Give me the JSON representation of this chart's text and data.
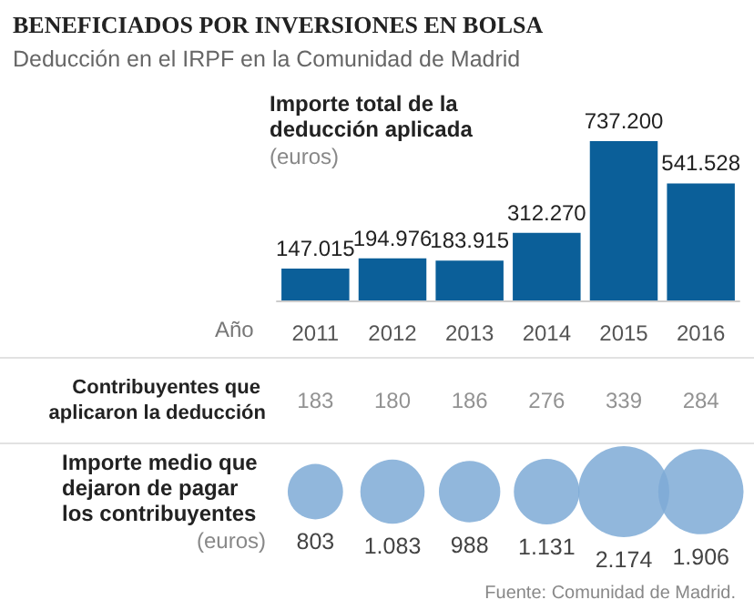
{
  "chart_data": [
    {
      "type": "bar",
      "title": "BENEFICIADOS POR INVERSIONES EN BOLSA",
      "subtitle": "Deducción en el IRPF en la Comunidad de Madrid",
      "ylabel": "Importe total de la deducción aplicada",
      "xlabel": "Año",
      "annotations": [
        "(euros)"
      ],
      "categories": [
        "2011",
        "2012",
        "2013",
        "2014",
        "2015",
        "2016"
      ],
      "values": [
        147015,
        194976,
        183915,
        312270,
        737200,
        541528
      ],
      "value_labels": [
        "147.015",
        "194.976",
        "183.915",
        "312.270",
        "737.200",
        "541.528"
      ],
      "color": "#0b5f99"
    },
    {
      "type": "other",
      "title": "Contribuyentes que aplicaron la deducción",
      "categories": [
        null,
        null,
        null,
        null,
        null,
        null
      ],
      "values": [
        183,
        180,
        186,
        276,
        339,
        284
      ],
      "data_labels": true
    },
    {
      "type": "other",
      "title": "Importe medio que dejaron de pagar los contribuyentes",
      "annotations": [
        "(euros)",
        "Fuente: Comunidad de Madrid."
      ],
      "categories": [
        null,
        null,
        null,
        null,
        null,
        null
      ],
      "values": [
        803,
        1083,
        988,
        1131,
        2174,
        1906
      ],
      "value_labels": [
        "803",
        "1.083",
        "988",
        "1.131",
        "2.174",
        "1.906"
      ],
      "color": "#7eaad6"
    }
  ]
}
